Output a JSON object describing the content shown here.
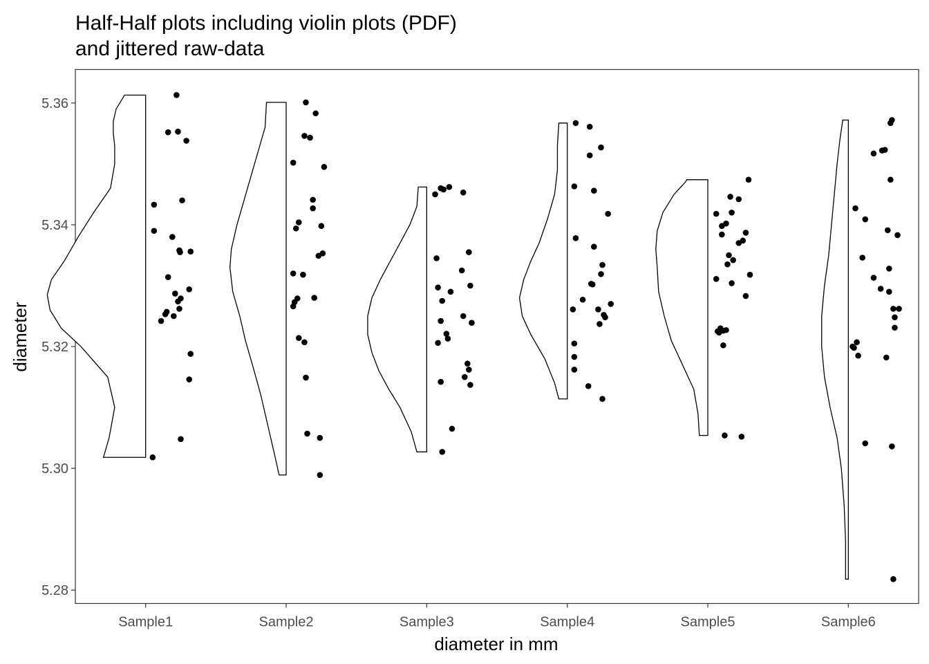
{
  "chart_data": {
    "type": "violin+jitter",
    "title": [
      "Half-Half plots including violin plots (PDF)",
      "and jittered raw-data"
    ],
    "xlabel": "diameter in mm",
    "ylabel": "diameter",
    "categories": [
      "Sample1",
      "Sample2",
      "Sample3",
      "Sample4",
      "Sample5",
      "Sample6"
    ],
    "ylim": [
      5.2778,
      5.3655
    ],
    "yticks": [
      5.28,
      5.3,
      5.32,
      5.34,
      5.36
    ],
    "ytick_labels": [
      "5.28",
      "5.30",
      "5.32",
      "5.34",
      "5.36"
    ],
    "grid": false,
    "legend": "none",
    "series": [
      {
        "category": "Sample1",
        "points": [
          {
            "dx": 0.05,
            "y": 5.3018
          },
          {
            "dx": 0.06,
            "y": 5.3433
          },
          {
            "dx": 0.06,
            "y": 5.339
          },
          {
            "dx": 0.11,
            "y": 5.3242
          },
          {
            "dx": 0.14,
            "y": 5.3253
          },
          {
            "dx": 0.15,
            "y": 5.3257
          },
          {
            "dx": 0.16,
            "y": 5.3552
          },
          {
            "dx": 0.16,
            "y": 5.3314
          },
          {
            "dx": 0.19,
            "y": 5.338
          },
          {
            "dx": 0.2,
            "y": 5.325
          },
          {
            "dx": 0.21,
            "y": 5.3287
          },
          {
            "dx": 0.22,
            "y": 5.3613
          },
          {
            "dx": 0.23,
            "y": 5.3553
          },
          {
            "dx": 0.23,
            "y": 5.3274
          },
          {
            "dx": 0.24,
            "y": 5.3358
          },
          {
            "dx": 0.24,
            "y": 5.3262
          },
          {
            "dx": 0.245,
            "y": 5.3355
          },
          {
            "dx": 0.25,
            "y": 5.3279
          },
          {
            "dx": 0.25,
            "y": 5.3048
          },
          {
            "dx": 0.26,
            "y": 5.344
          },
          {
            "dx": 0.29,
            "y": 5.3538
          },
          {
            "dx": 0.31,
            "y": 5.3146
          },
          {
            "dx": 0.31,
            "y": 5.3294
          },
          {
            "dx": 0.32,
            "y": 5.3188
          },
          {
            "dx": 0.32,
            "y": 5.3356
          }
        ],
        "density": [
          [
            5.3018,
            0.3
          ],
          [
            5.305,
            0.26
          ],
          [
            5.31,
            0.22
          ],
          [
            5.315,
            0.27
          ],
          [
            5.32,
            0.46
          ],
          [
            5.323,
            0.6
          ],
          [
            5.326,
            0.68
          ],
          [
            5.3285,
            0.7
          ],
          [
            5.331,
            0.67
          ],
          [
            5.334,
            0.58
          ],
          [
            5.338,
            0.48
          ],
          [
            5.342,
            0.37
          ],
          [
            5.346,
            0.25
          ],
          [
            5.35,
            0.22
          ],
          [
            5.353,
            0.22
          ],
          [
            5.355,
            0.23
          ],
          [
            5.357,
            0.23
          ],
          [
            5.359,
            0.21
          ],
          [
            5.3613,
            0.15
          ]
        ]
      },
      {
        "category": "Sample2",
        "points": [
          {
            "dx": 0.05,
            "y": 5.3266
          },
          {
            "dx": 0.05,
            "y": 5.332
          },
          {
            "dx": 0.05,
            "y": 5.3502
          },
          {
            "dx": 0.06,
            "y": 5.3273
          },
          {
            "dx": 0.07,
            "y": 5.3394
          },
          {
            "dx": 0.08,
            "y": 5.3279
          },
          {
            "dx": 0.09,
            "y": 5.3404
          },
          {
            "dx": 0.09,
            "y": 5.3214
          },
          {
            "dx": 0.12,
            "y": 5.3318
          },
          {
            "dx": 0.13,
            "y": 5.3546
          },
          {
            "dx": 0.13,
            "y": 5.3207
          },
          {
            "dx": 0.14,
            "y": 5.3601
          },
          {
            "dx": 0.14,
            "y": 5.3149
          },
          {
            "dx": 0.15,
            "y": 5.3057
          },
          {
            "dx": 0.17,
            "y": 5.3543
          },
          {
            "dx": 0.19,
            "y": 5.3441
          },
          {
            "dx": 0.19,
            "y": 5.3427
          },
          {
            "dx": 0.2,
            "y": 5.328
          },
          {
            "dx": 0.21,
            "y": 5.3583
          },
          {
            "dx": 0.23,
            "y": 5.3349
          },
          {
            "dx": 0.24,
            "y": 5.305
          },
          {
            "dx": 0.24,
            "y": 5.2989
          },
          {
            "dx": 0.25,
            "y": 5.3398
          },
          {
            "dx": 0.26,
            "y": 5.3353
          },
          {
            "dx": 0.27,
            "y": 5.3495
          }
        ],
        "density": [
          [
            5.2989,
            0.05
          ],
          [
            5.302,
            0.08
          ],
          [
            5.307,
            0.13
          ],
          [
            5.312,
            0.18
          ],
          [
            5.317,
            0.24
          ],
          [
            5.321,
            0.29
          ],
          [
            5.325,
            0.33
          ],
          [
            5.329,
            0.38
          ],
          [
            5.333,
            0.4
          ],
          [
            5.336,
            0.39
          ],
          [
            5.34,
            0.35
          ],
          [
            5.344,
            0.3
          ],
          [
            5.348,
            0.25
          ],
          [
            5.352,
            0.2
          ],
          [
            5.356,
            0.15
          ],
          [
            5.3601,
            0.14
          ]
        ]
      },
      {
        "category": "Sample3",
        "points": [
          {
            "dx": 0.06,
            "y": 5.345
          },
          {
            "dx": 0.07,
            "y": 5.3345
          },
          {
            "dx": 0.08,
            "y": 5.3297
          },
          {
            "dx": 0.08,
            "y": 5.3206
          },
          {
            "dx": 0.1,
            "y": 5.346
          },
          {
            "dx": 0.1,
            "y": 5.3242
          },
          {
            "dx": 0.1,
            "y": 5.3142
          },
          {
            "dx": 0.11,
            "y": 5.3027
          },
          {
            "dx": 0.11,
            "y": 5.3275
          },
          {
            "dx": 0.12,
            "y": 5.3458
          },
          {
            "dx": 0.14,
            "y": 5.3221
          },
          {
            "dx": 0.15,
            "y": 5.3213
          },
          {
            "dx": 0.16,
            "y": 5.3462
          },
          {
            "dx": 0.17,
            "y": 5.329
          },
          {
            "dx": 0.18,
            "y": 5.3065
          },
          {
            "dx": 0.25,
            "y": 5.3325
          },
          {
            "dx": 0.26,
            "y": 5.325
          },
          {
            "dx": 0.26,
            "y": 5.3453
          },
          {
            "dx": 0.27,
            "y": 5.315
          },
          {
            "dx": 0.29,
            "y": 5.3172
          },
          {
            "dx": 0.3,
            "y": 5.3162
          },
          {
            "dx": 0.3,
            "y": 5.3355
          },
          {
            "dx": 0.31,
            "y": 5.33
          },
          {
            "dx": 0.32,
            "y": 5.3239
          },
          {
            "dx": 0.31,
            "y": 5.3137
          }
        ],
        "density": [
          [
            5.3027,
            0.07
          ],
          [
            5.306,
            0.11
          ],
          [
            5.31,
            0.19
          ],
          [
            5.313,
            0.27
          ],
          [
            5.316,
            0.34
          ],
          [
            5.319,
            0.39
          ],
          [
            5.322,
            0.42
          ],
          [
            5.325,
            0.42
          ],
          [
            5.328,
            0.39
          ],
          [
            5.331,
            0.33
          ],
          [
            5.334,
            0.26
          ],
          [
            5.337,
            0.19
          ],
          [
            5.34,
            0.12
          ],
          [
            5.343,
            0.07
          ],
          [
            5.3462,
            0.06
          ]
        ]
      },
      {
        "category": "Sample4",
        "points": [
          {
            "dx": 0.04,
            "y": 5.3261
          },
          {
            "dx": 0.05,
            "y": 5.3463
          },
          {
            "dx": 0.05,
            "y": 5.3205
          },
          {
            "dx": 0.05,
            "y": 5.3183
          },
          {
            "dx": 0.05,
            "y": 5.3162
          },
          {
            "dx": 0.06,
            "y": 5.3567
          },
          {
            "dx": 0.06,
            "y": 5.3378
          },
          {
            "dx": 0.11,
            "y": 5.3277
          },
          {
            "dx": 0.15,
            "y": 5.3135
          },
          {
            "dx": 0.16,
            "y": 5.3514
          },
          {
            "dx": 0.16,
            "y": 5.3561
          },
          {
            "dx": 0.17,
            "y": 5.3303
          },
          {
            "dx": 0.18,
            "y": 5.3302
          },
          {
            "dx": 0.19,
            "y": 5.3364
          },
          {
            "dx": 0.19,
            "y": 5.3456
          },
          {
            "dx": 0.22,
            "y": 5.3261
          },
          {
            "dx": 0.23,
            "y": 5.3237
          },
          {
            "dx": 0.24,
            "y": 5.3527
          },
          {
            "dx": 0.24,
            "y": 5.3319
          },
          {
            "dx": 0.25,
            "y": 5.3334
          },
          {
            "dx": 0.25,
            "y": 5.3114
          },
          {
            "dx": 0.26,
            "y": 5.3252
          },
          {
            "dx": 0.27,
            "y": 5.3248
          },
          {
            "dx": 0.29,
            "y": 5.3418
          },
          {
            "dx": 0.31,
            "y": 5.327
          }
        ],
        "density": [
          [
            5.3114,
            0.06
          ],
          [
            5.314,
            0.09
          ],
          [
            5.318,
            0.16
          ],
          [
            5.322,
            0.26
          ],
          [
            5.325,
            0.32
          ],
          [
            5.328,
            0.34
          ],
          [
            5.331,
            0.31
          ],
          [
            5.334,
            0.26
          ],
          [
            5.337,
            0.2
          ],
          [
            5.341,
            0.14
          ],
          [
            5.345,
            0.09
          ],
          [
            5.349,
            0.07
          ],
          [
            5.353,
            0.07
          ],
          [
            5.3567,
            0.06
          ]
        ]
      },
      {
        "category": "Sample5",
        "points": [
          {
            "dx": 0.06,
            "y": 5.3311
          },
          {
            "dx": 0.06,
            "y": 5.3418
          },
          {
            "dx": 0.07,
            "y": 5.3225
          },
          {
            "dx": 0.08,
            "y": 5.3223
          },
          {
            "dx": 0.09,
            "y": 5.323
          },
          {
            "dx": 0.1,
            "y": 5.3384
          },
          {
            "dx": 0.1,
            "y": 5.3398
          },
          {
            "dx": 0.11,
            "y": 5.3226
          },
          {
            "dx": 0.11,
            "y": 5.3202
          },
          {
            "dx": 0.12,
            "y": 5.3054
          },
          {
            "dx": 0.13,
            "y": 5.3402
          },
          {
            "dx": 0.13,
            "y": 5.3227
          },
          {
            "dx": 0.14,
            "y": 5.3335
          },
          {
            "dx": 0.15,
            "y": 5.335
          },
          {
            "dx": 0.16,
            "y": 5.3446
          },
          {
            "dx": 0.17,
            "y": 5.342
          },
          {
            "dx": 0.17,
            "y": 5.3304
          },
          {
            "dx": 0.18,
            "y": 5.3342
          },
          {
            "dx": 0.22,
            "y": 5.3442
          },
          {
            "dx": 0.22,
            "y": 5.337
          },
          {
            "dx": 0.24,
            "y": 5.3052
          },
          {
            "dx": 0.25,
            "y": 5.3374
          },
          {
            "dx": 0.27,
            "y": 5.3387
          },
          {
            "dx": 0.27,
            "y": 5.3283
          },
          {
            "dx": 0.29,
            "y": 5.3474
          },
          {
            "dx": 0.3,
            "y": 5.3318
          }
        ],
        "density": [
          [
            5.3054,
            0.06
          ],
          [
            5.309,
            0.07
          ],
          [
            5.313,
            0.1
          ],
          [
            5.317,
            0.18
          ],
          [
            5.321,
            0.26
          ],
          [
            5.325,
            0.31
          ],
          [
            5.329,
            0.35
          ],
          [
            5.333,
            0.36
          ],
          [
            5.336,
            0.37
          ],
          [
            5.339,
            0.36
          ],
          [
            5.342,
            0.32
          ],
          [
            5.345,
            0.24
          ],
          [
            5.347,
            0.16
          ],
          [
            5.3474,
            0.15
          ]
        ]
      },
      {
        "category": "Sample6",
        "points": [
          {
            "dx": 0.03,
            "y": 5.32
          },
          {
            "dx": 0.04,
            "y": 5.3198
          },
          {
            "dx": 0.05,
            "y": 5.3427
          },
          {
            "dx": 0.06,
            "y": 5.3207
          },
          {
            "dx": 0.07,
            "y": 5.3185
          },
          {
            "dx": 0.1,
            "y": 5.3346
          },
          {
            "dx": 0.12,
            "y": 5.3409
          },
          {
            "dx": 0.12,
            "y": 5.3041
          },
          {
            "dx": 0.18,
            "y": 5.3313
          },
          {
            "dx": 0.18,
            "y": 5.3517
          },
          {
            "dx": 0.23,
            "y": 5.3295
          },
          {
            "dx": 0.24,
            "y": 5.3522
          },
          {
            "dx": 0.26,
            "y": 5.3523
          },
          {
            "dx": 0.27,
            "y": 5.3182
          },
          {
            "dx": 0.28,
            "y": 5.3391
          },
          {
            "dx": 0.29,
            "y": 5.3328
          },
          {
            "dx": 0.29,
            "y": 5.329
          },
          {
            "dx": 0.3,
            "y": 5.3474
          },
          {
            "dx": 0.3,
            "y": 5.3567
          },
          {
            "dx": 0.31,
            "y": 5.3572
          },
          {
            "dx": 0.31,
            "y": 5.3036
          },
          {
            "dx": 0.32,
            "y": 5.2818
          },
          {
            "dx": 0.32,
            "y": 5.3262
          },
          {
            "dx": 0.33,
            "y": 5.3231
          },
          {
            "dx": 0.33,
            "y": 5.3248
          },
          {
            "dx": 0.35,
            "y": 5.3383
          },
          {
            "dx": 0.36,
            "y": 5.3262
          }
        ],
        "density": [
          [
            5.2818,
            0.02
          ],
          [
            5.288,
            0.02
          ],
          [
            5.294,
            0.03
          ],
          [
            5.3,
            0.05
          ],
          [
            5.305,
            0.08
          ],
          [
            5.31,
            0.13
          ],
          [
            5.315,
            0.17
          ],
          [
            5.32,
            0.19
          ],
          [
            5.325,
            0.19
          ],
          [
            5.33,
            0.17
          ],
          [
            5.335,
            0.14
          ],
          [
            5.34,
            0.12
          ],
          [
            5.345,
            0.1
          ],
          [
            5.35,
            0.08
          ],
          [
            5.354,
            0.06
          ],
          [
            5.3572,
            0.04
          ]
        ]
      }
    ]
  }
}
